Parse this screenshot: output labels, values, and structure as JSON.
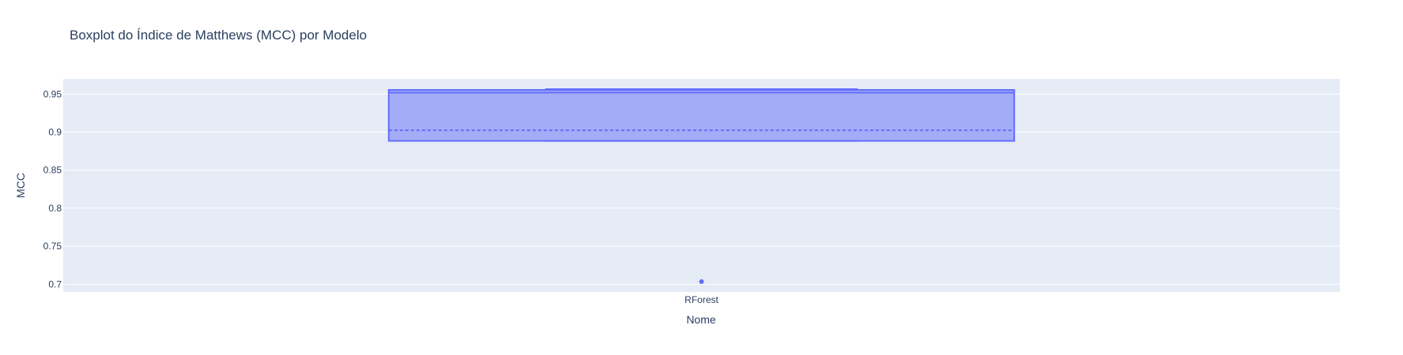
{
  "chart_data": {
    "type": "box",
    "title": "Boxplot do Índice de Matthews (MCC) por Modelo",
    "xlabel": "Nome",
    "ylabel": "MCC",
    "categories": [
      "RForest"
    ],
    "ylim": [
      0.69,
      0.97
    ],
    "yticks": [
      0.7,
      0.75,
      0.8,
      0.85,
      0.9,
      0.95
    ],
    "ytick_labels": [
      "0.7",
      "0.75",
      "0.8",
      "0.85",
      "0.9",
      "0.95"
    ],
    "grid": true,
    "series": [
      {
        "category": "RForest",
        "lower_fence": 0.8885,
        "q1": 0.8885,
        "median": 0.952,
        "q3": 0.9555,
        "upper_fence": 0.9565,
        "mean": 0.9025,
        "outliers": [
          0.7035
        ]
      }
    ],
    "colors": {
      "box_fill": "#a3acf7",
      "box_line": "#636efa",
      "plot_bg": "#e5ecf6",
      "grid": "#ffffff",
      "text": "#2a3f5f"
    }
  }
}
